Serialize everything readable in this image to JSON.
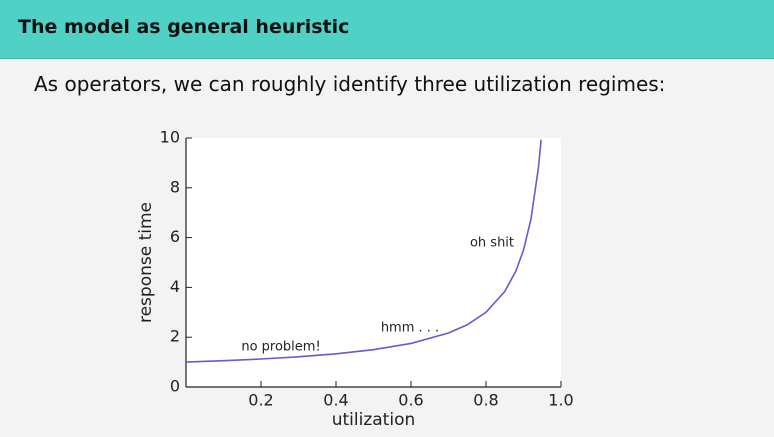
{
  "header": {
    "title": "The model as general heuristic"
  },
  "lead": "As operators, we can roughly identify three utilization regimes:",
  "chart_data": {
    "type": "line",
    "xlabel": "utilization",
    "ylabel": "response time",
    "x": [
      0,
      0.1,
      0.2,
      0.3,
      0.4,
      0.5,
      0.6,
      0.7,
      0.75,
      0.8,
      0.85,
      0.88,
      0.9,
      0.92,
      0.94,
      0.947
    ],
    "series": [
      {
        "color": "#6a5acd",
        "values": [
          1,
          1.056,
          1.125,
          1.214,
          1.333,
          1.5,
          1.75,
          2.167,
          2.5,
          3,
          3.833,
          4.667,
          5.5,
          6.75,
          8.833,
          9.93
        ]
      }
    ],
    "xlim": [
      0,
      1
    ],
    "xticks": [
      0.2,
      0.4,
      0.6,
      0.8,
      {
        "value": 1,
        "label": "1.0"
      }
    ],
    "ylim": [
      0,
      10
    ],
    "yticks": [
      0,
      2,
      4,
      6,
      8,
      10
    ],
    "annotations": [
      "no problem!",
      "hmm . . .",
      "oh shit"
    ]
  }
}
